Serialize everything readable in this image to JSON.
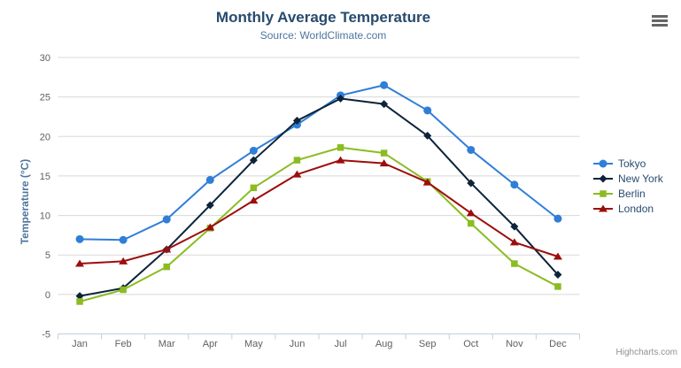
{
  "chart_data": {
    "type": "line",
    "title": "Monthly Average Temperature",
    "subtitle": "Source: WorldClimate.com",
    "xlabel": "",
    "ylabel": "Temperature (°C)",
    "ylim": [
      -5,
      30
    ],
    "ytick_step": 5,
    "yticks": [
      -5,
      0,
      5,
      10,
      15,
      20,
      25,
      30
    ],
    "grid": true,
    "legend_position": "right",
    "categories": [
      "Jan",
      "Feb",
      "Mar",
      "Apr",
      "May",
      "Jun",
      "Jul",
      "Aug",
      "Sep",
      "Oct",
      "Nov",
      "Dec"
    ],
    "series": [
      {
        "name": "Tokyo",
        "color": "#2f7ed8",
        "marker": "circle",
        "values": [
          7.0,
          6.9,
          9.5,
          14.5,
          18.2,
          21.5,
          25.2,
          26.5,
          23.3,
          18.3,
          13.9,
          9.6
        ]
      },
      {
        "name": "New York",
        "color": "#0d233a",
        "marker": "diamond",
        "values": [
          -0.2,
          0.8,
          5.7,
          11.3,
          17.0,
          22.0,
          24.8,
          24.1,
          20.1,
          14.1,
          8.6,
          2.5
        ]
      },
      {
        "name": "Berlin",
        "color": "#8bbc21",
        "marker": "square",
        "values": [
          -0.9,
          0.6,
          3.5,
          8.4,
          13.5,
          17.0,
          18.6,
          17.9,
          14.3,
          9.0,
          3.9,
          1.0
        ]
      },
      {
        "name": "London",
        "color": "#9c0d0d",
        "marker": "triangle",
        "values": [
          3.9,
          4.2,
          5.7,
          8.5,
          11.9,
          15.2,
          17.0,
          16.6,
          14.2,
          10.3,
          6.6,
          4.8
        ]
      }
    ]
  },
  "colors": {
    "title": "#274b6d",
    "subtitle": "#4d759e",
    "axis_title": "#4d759e",
    "axis_label": "#606060",
    "grid_line": "#d8d8d8",
    "axis_line": "#c0d0e0",
    "legend_text": "#274b6d",
    "credits": "#909090",
    "menu_icon": "#666666"
  },
  "menu": {
    "icon": "hamburger-icon"
  },
  "credits": {
    "label": "Highcharts.com"
  }
}
